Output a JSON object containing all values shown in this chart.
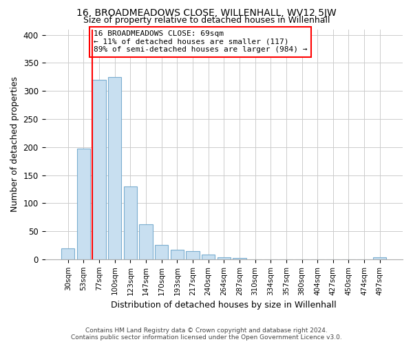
{
  "title": "16, BROADMEADOWS CLOSE, WILLENHALL, WV12 5JW",
  "subtitle": "Size of property relative to detached houses in Willenhall",
  "xlabel": "Distribution of detached houses by size in Willenhall",
  "ylabel": "Number of detached properties",
  "bar_labels": [
    "30sqm",
    "53sqm",
    "77sqm",
    "100sqm",
    "123sqm",
    "147sqm",
    "170sqm",
    "193sqm",
    "217sqm",
    "240sqm",
    "264sqm",
    "287sqm",
    "310sqm",
    "334sqm",
    "357sqm",
    "380sqm",
    "404sqm",
    "427sqm",
    "450sqm",
    "474sqm",
    "497sqm"
  ],
  "bar_values": [
    19,
    197,
    320,
    325,
    130,
    62,
    25,
    17,
    15,
    8,
    4,
    2,
    0,
    0,
    0,
    0,
    0,
    0,
    0,
    0,
    3
  ],
  "bar_color": "#c8dff0",
  "bar_edge_color": "#7aadcf",
  "vline_color": "red",
  "vline_x_idx": 2,
  "annotation_lines": [
    "16 BROADMEADOWS CLOSE: 69sqm",
    "← 11% of detached houses are smaller (117)",
    "89% of semi-detached houses are larger (984) →"
  ],
  "ylim": [
    0,
    410
  ],
  "yticks": [
    0,
    50,
    100,
    150,
    200,
    250,
    300,
    350,
    400
  ],
  "footer_line1": "Contains HM Land Registry data © Crown copyright and database right 2024.",
  "footer_line2": "Contains public sector information licensed under the Open Government Licence v3.0.",
  "background_color": "#ffffff",
  "grid_color": "#cccccc"
}
